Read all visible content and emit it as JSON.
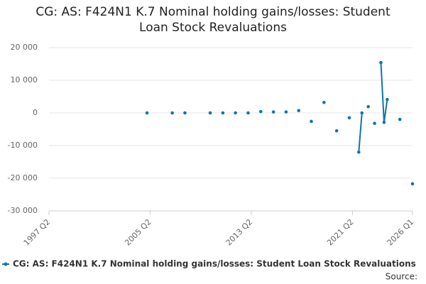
{
  "chart_data": {
    "type": "line",
    "title": "CG: AS: F424N1 K.7 Nominal holding gains/losses: Student Loan Stock Revaluations",
    "source_label": "Source:",
    "x": [
      "2005 Q1",
      "2005 Q2",
      "2007 Q1",
      "2007 Q2",
      "2008 Q1",
      "2008 Q2",
      "2010 Q1",
      "2010 Q2",
      "2011 Q1",
      "2011 Q2",
      "2012 Q1",
      "2012 Q2",
      "2013 Q1",
      "2013 Q2",
      "2014 Q1",
      "2014 Q2",
      "2015 Q1",
      "2015 Q2",
      "2016 Q1",
      "2016 Q2",
      "2017 Q1",
      "2017 Q2",
      "2018 Q1",
      "2018 Q2",
      "2019 Q1",
      "2019 Q2",
      "2020 Q1",
      "2020 Q2",
      "2021 Q1",
      "2021 Q2",
      "2021 Q4",
      "2022 Q1",
      "2022 Q2",
      "2022 Q3",
      "2022 Q4",
      "2023 Q1",
      "2023 Q2",
      "2023 Q3",
      "2023 Q4",
      "2024 Q1",
      "2024 Q2",
      "2025 Q1",
      "2025 Q2",
      "2026 Q1"
    ],
    "series": [
      {
        "name": "CG: AS: F424N1 K.7 Nominal holding gains/losses: Student Loan Stock Revaluations",
        "color": "#0f74b0",
        "values": [
          0,
          null,
          0,
          null,
          0,
          null,
          0,
          null,
          0,
          null,
          0,
          null,
          0,
          null,
          400,
          null,
          300,
          null,
          300,
          null,
          700,
          null,
          -2600,
          null,
          3200,
          null,
          -5500,
          null,
          -1500,
          null,
          -12000,
          0,
          null,
          1900,
          null,
          -3200,
          null,
          15400,
          -2900,
          4100,
          null,
          -2000,
          null,
          -21700
        ]
      }
    ],
    "xlim": [
      "1997 Q2",
      "2026 Q1"
    ],
    "xticks": [
      "1997 Q2",
      "2005 Q2",
      "2013 Q2",
      "2021 Q2",
      "2026 Q1"
    ],
    "ylim": [
      -30000,
      20000
    ],
    "yticks": [
      {
        "value": -30000,
        "label": "-30 000"
      },
      {
        "value": -20000,
        "label": "-20 000"
      },
      {
        "value": -10000,
        "label": "-10 000"
      },
      0,
      {
        "value": 10000,
        "label": "10 000"
      },
      {
        "value": 20000,
        "label": "20 000"
      }
    ],
    "grid": true
  }
}
